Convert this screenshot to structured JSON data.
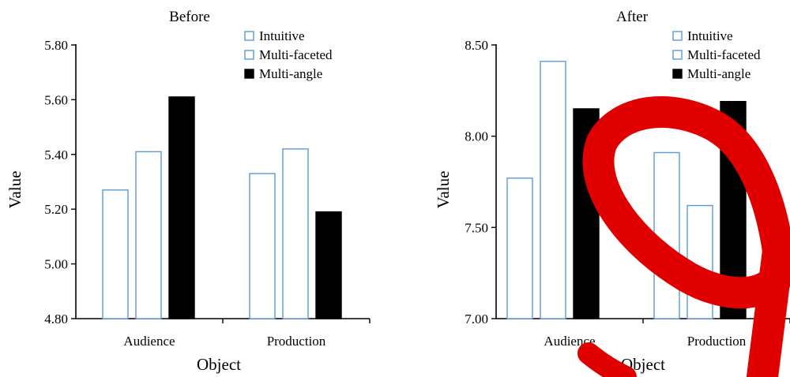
{
  "chart_data": [
    {
      "type": "bar",
      "title": "Before",
      "xlabel": "Object",
      "ylabel": "Value",
      "categories": [
        "Audience",
        "Production"
      ],
      "ylim": [
        4.8,
        5.8
      ],
      "yticks": [
        "4.80",
        "5.00",
        "5.20",
        "5.40",
        "5.60",
        "5.80"
      ],
      "legend_position": "top-right",
      "grid": false,
      "series": [
        {
          "name": "Intuitive",
          "values": [
            5.27,
            5.33
          ],
          "fill": "#ffffff",
          "stroke": "#5b9bd5"
        },
        {
          "name": "Multi-faceted",
          "values": [
            5.41,
            5.42
          ],
          "fill": "#ffffff",
          "stroke": "#5b9bd5"
        },
        {
          "name": "Multi-angle",
          "values": [
            5.61,
            5.19
          ],
          "fill": "#000000",
          "stroke": "#000000"
        }
      ]
    },
    {
      "type": "bar",
      "title": "After",
      "xlabel": "Object",
      "ylabel": "Value",
      "categories": [
        "Audience",
        "Production"
      ],
      "ylim": [
        7.0,
        8.5
      ],
      "yticks": [
        "7.00",
        "7.50",
        "8.00",
        "8.50"
      ],
      "legend_position": "top-right",
      "grid": false,
      "series": [
        {
          "name": "Intuitive",
          "values": [
            7.77,
            7.91
          ],
          "fill": "#ffffff",
          "stroke": "#5b9bd5"
        },
        {
          "name": "Multi-faceted",
          "values": [
            8.41,
            7.62
          ],
          "fill": "#ffffff",
          "stroke": "#5b9bd5"
        },
        {
          "name": "Multi-angle",
          "values": [
            8.15,
            8.19
          ],
          "fill": "#000000",
          "stroke": "#000000"
        }
      ]
    }
  ],
  "overlay": {
    "color": "#e00000"
  }
}
